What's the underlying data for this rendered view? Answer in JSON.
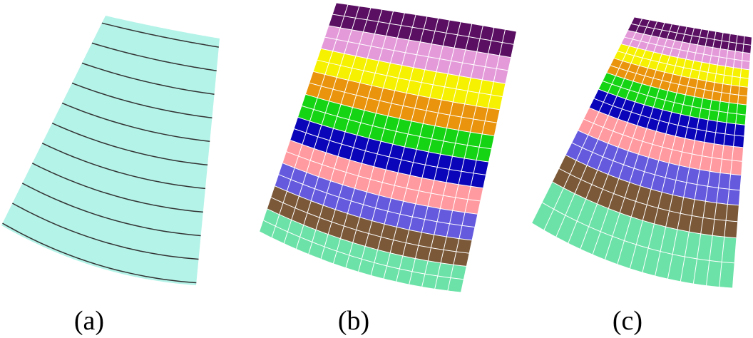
{
  "panels": [
    {
      "id": "a",
      "caption": "(a)",
      "type": "curves",
      "surface_color": "#b4f3e8",
      "curve_color": "#333333",
      "curve_count": 11
    },
    {
      "id": "b",
      "caption": "(b)",
      "type": "colored-mesh",
      "columns": 16,
      "rows_per_band": 2,
      "grid_color": "#ffffff"
    },
    {
      "id": "c",
      "caption": "(c)",
      "type": "colored-mesh",
      "columns": 16,
      "rows_per_band": 2,
      "grid_color": "#ffffff"
    }
  ],
  "band_colors": [
    "#5a0f62",
    "#e49ad9",
    "#f6f100",
    "#e9940c",
    "#14d414",
    "#0a05b8",
    "#ff9aa0",
    "#655ade",
    "#7a5838",
    "#6ce2a8"
  ]
}
